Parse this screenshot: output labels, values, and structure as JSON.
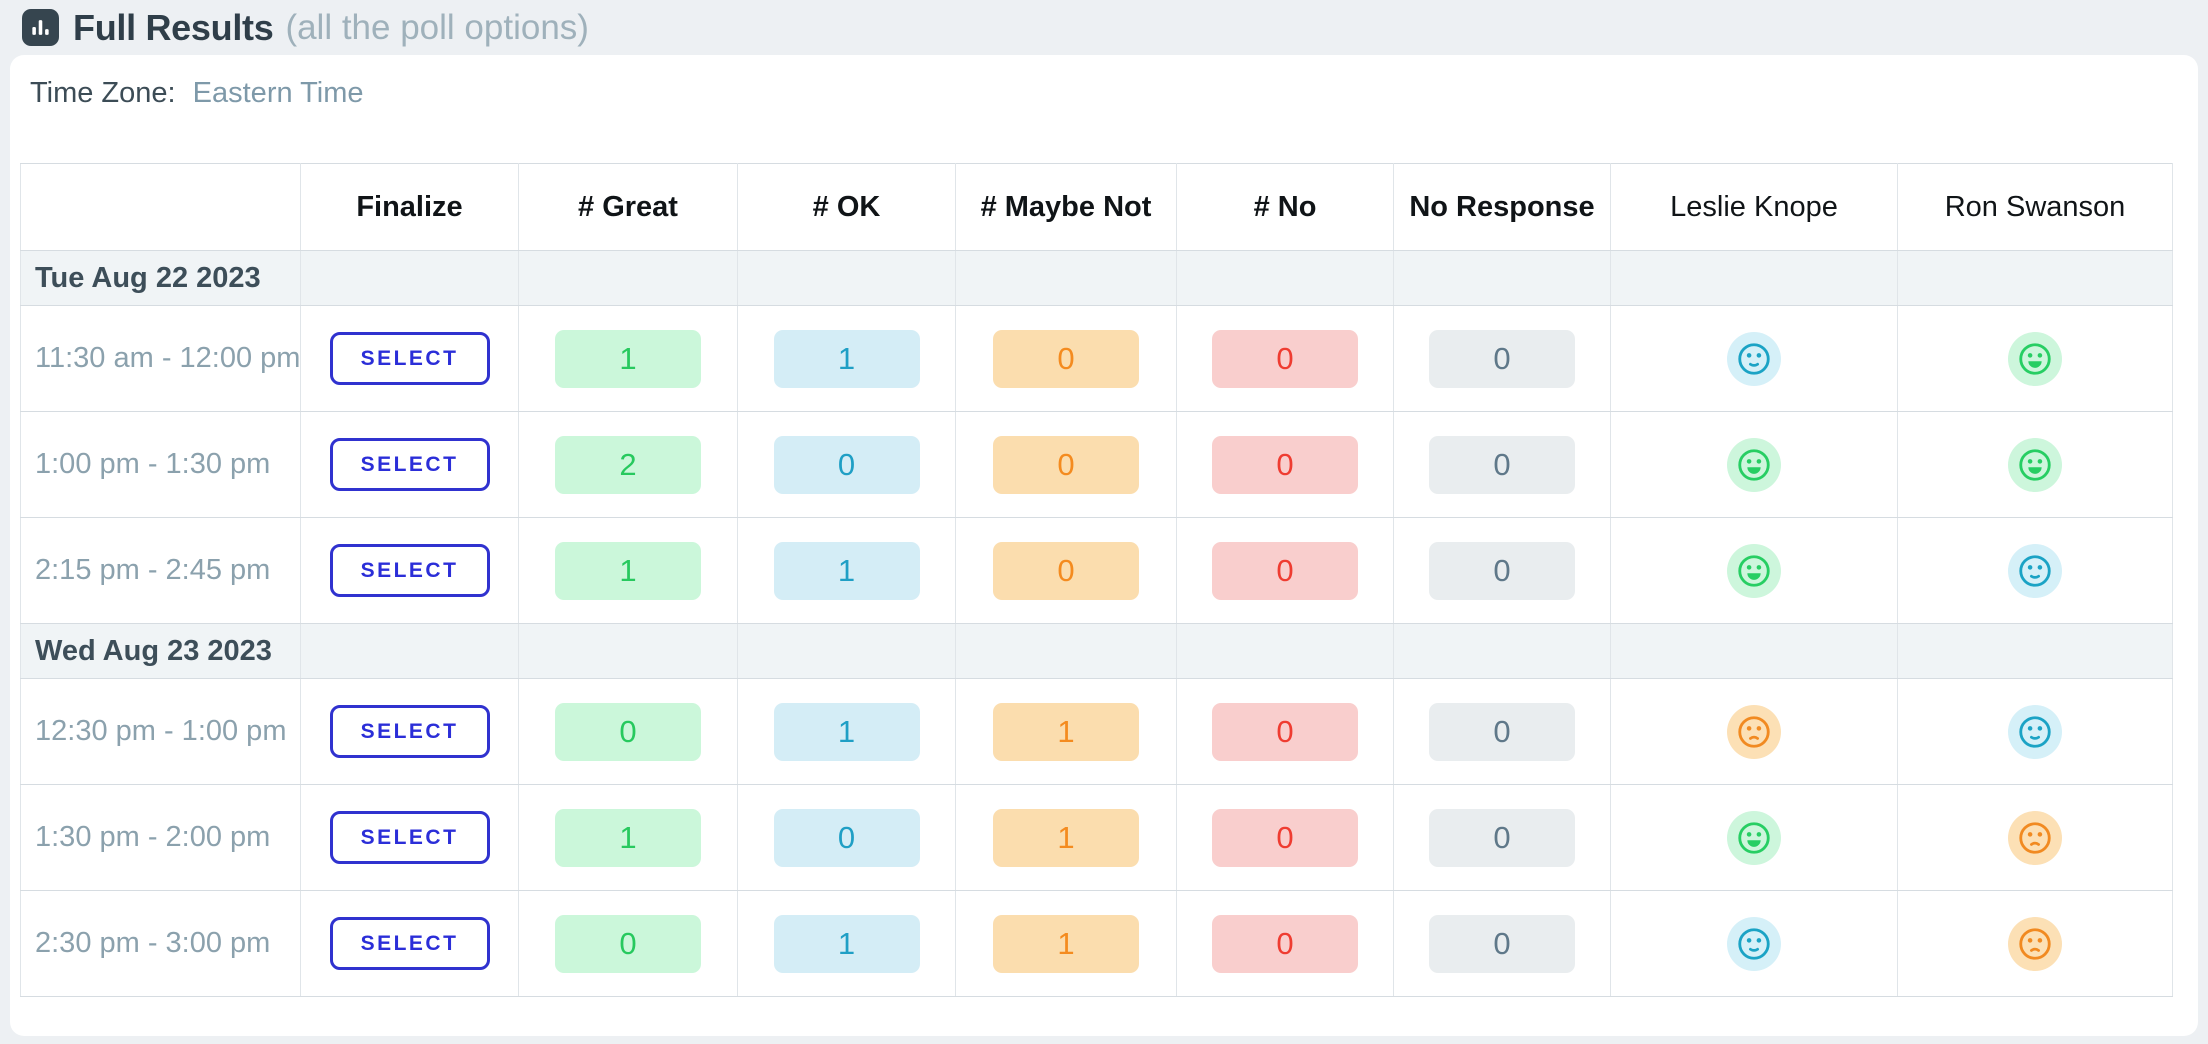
{
  "header": {
    "icon": "bar-chart-icon",
    "title": "Full Results",
    "subtitle": "(all the poll options)"
  },
  "timezone": {
    "label": "Time Zone:",
    "value": "Eastern Time"
  },
  "table": {
    "columns": [
      {
        "key": "time",
        "label": ""
      },
      {
        "key": "finalize",
        "label": "Finalize"
      },
      {
        "key": "great",
        "label": "# Great"
      },
      {
        "key": "ok",
        "label": "# OK"
      },
      {
        "key": "maybe_not",
        "label": "# Maybe Not"
      },
      {
        "key": "no",
        "label": "# No"
      },
      {
        "key": "no_response",
        "label": "No Response"
      },
      {
        "key": "participant",
        "label": "Leslie Knope",
        "participant": true
      },
      {
        "key": "participant",
        "label": "Ron Swanson",
        "participant": true
      }
    ],
    "select_label": "SELECT",
    "count_keys": [
      "great",
      "ok",
      "maybe_not",
      "no",
      "no_response"
    ],
    "groups": [
      {
        "date": "Tue Aug 22 2023",
        "rows": [
          {
            "time": "11:30 am - 12:00 pm",
            "counts": {
              "great": 1,
              "ok": 1,
              "maybe_not": 0,
              "no": 0,
              "no_response": 0
            },
            "faces": [
              "ok",
              "great"
            ]
          },
          {
            "time": "1:00 pm - 1:30 pm",
            "counts": {
              "great": 2,
              "ok": 0,
              "maybe_not": 0,
              "no": 0,
              "no_response": 0
            },
            "faces": [
              "great",
              "great"
            ]
          },
          {
            "time": "2:15 pm - 2:45 pm",
            "counts": {
              "great": 1,
              "ok": 1,
              "maybe_not": 0,
              "no": 0,
              "no_response": 0
            },
            "faces": [
              "great",
              "ok"
            ]
          }
        ]
      },
      {
        "date": "Wed Aug 23 2023",
        "rows": [
          {
            "time": "12:30 pm - 1:00 pm",
            "counts": {
              "great": 0,
              "ok": 1,
              "maybe_not": 1,
              "no": 0,
              "no_response": 0
            },
            "faces": [
              "maybe_not",
              "ok"
            ]
          },
          {
            "time": "1:30 pm - 2:00 pm",
            "counts": {
              "great": 1,
              "ok": 0,
              "maybe_not": 1,
              "no": 0,
              "no_response": 0
            },
            "faces": [
              "great",
              "maybe_not"
            ]
          },
          {
            "time": "2:30 pm - 3:00 pm",
            "counts": {
              "great": 0,
              "ok": 1,
              "maybe_not": 1,
              "no": 0,
              "no_response": 0
            },
            "faces": [
              "ok",
              "maybe_not"
            ]
          }
        ]
      }
    ]
  },
  "colors": {
    "page_bg": "#edf0f3",
    "card_bg": "#ffffff",
    "title_text": "#2f3e49",
    "subtitle_text": "#9fb1bb",
    "tz_label_text": "#3c4c56",
    "tz_value_text": "#7e99a9",
    "header_text": "#101417",
    "date_row_bg": "#f0f4f6",
    "date_text": "#3d4e59",
    "time_text": "#8ba1ad",
    "app_icon_bg": "#36454f",
    "select_border": "#3032cf",
    "select_text": "#2b2ed8",
    "pills": {
      "great": {
        "bg": "#cbf7da",
        "fg": "#27c95e"
      },
      "ok": {
        "bg": "#d4edf6",
        "fg": "#1f9fc5"
      },
      "maybe_not": {
        "bg": "#fbddae",
        "fg": "#f48b1f"
      },
      "no": {
        "bg": "#f9cecd",
        "fg": "#ef3c31"
      },
      "no_response": {
        "bg": "#e9edef",
        "fg": "#5f7889"
      }
    },
    "faces": {
      "great": {
        "bg": "#cdf6dc",
        "fg": "#27ce63"
      },
      "ok": {
        "bg": "#d5f0f8",
        "fg": "#1ba3c5"
      },
      "maybe_not": {
        "bg": "#fce0b5",
        "fg": "#f18a21"
      }
    }
  }
}
